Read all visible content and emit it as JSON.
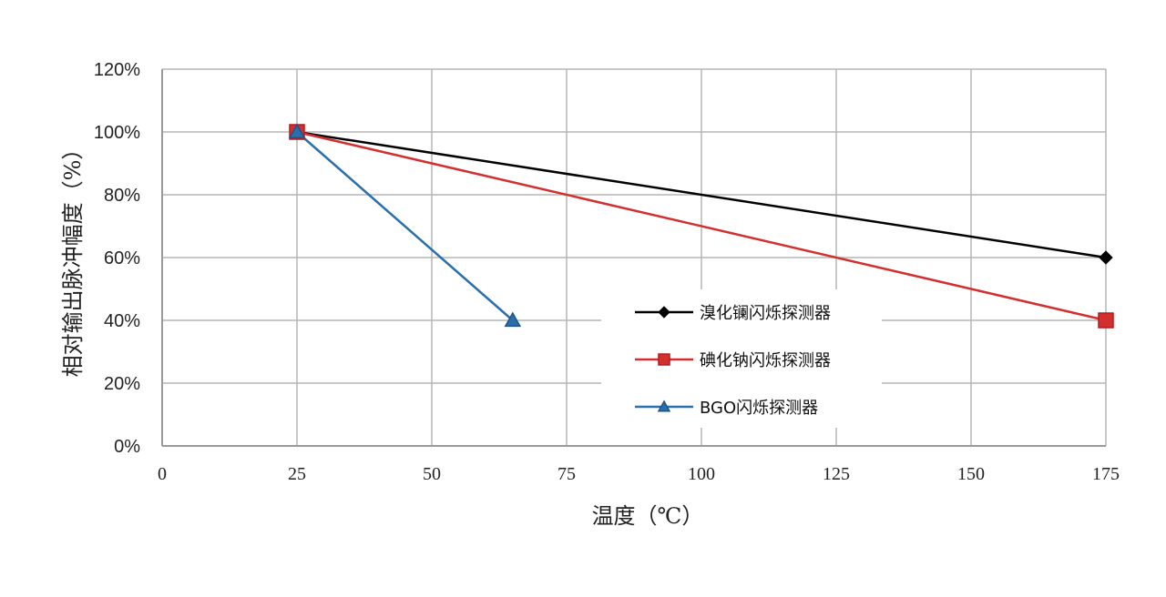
{
  "chart_data": {
    "type": "line",
    "xlabel": "温度（℃）",
    "ylabel": "相对输出脉冲幅度（%）",
    "xlim": [
      0,
      175
    ],
    "ylim": [
      0,
      120
    ],
    "x_ticks": [
      "0",
      "25",
      "50",
      "75",
      "100",
      "125",
      "150",
      "175"
    ],
    "y_ticks": [
      "0%",
      "20%",
      "40%",
      "60%",
      "80%",
      "100%",
      "120%"
    ],
    "grid": true,
    "legend_position": "center-right",
    "series": [
      {
        "name": "溴化镧闪烁探测器",
        "color": "#000000",
        "marker": "diamond",
        "x": [
          25,
          175
        ],
        "y": [
          100,
          60
        ]
      },
      {
        "name": "碘化钠闪烁探测器",
        "color": "#d32f2f",
        "marker": "square",
        "x": [
          25,
          175
        ],
        "y": [
          100,
          40
        ]
      },
      {
        "name": "BGO闪烁探测器",
        "color": "#2a6fad",
        "marker": "triangle",
        "x": [
          25,
          65
        ],
        "y": [
          100,
          40
        ]
      }
    ]
  }
}
